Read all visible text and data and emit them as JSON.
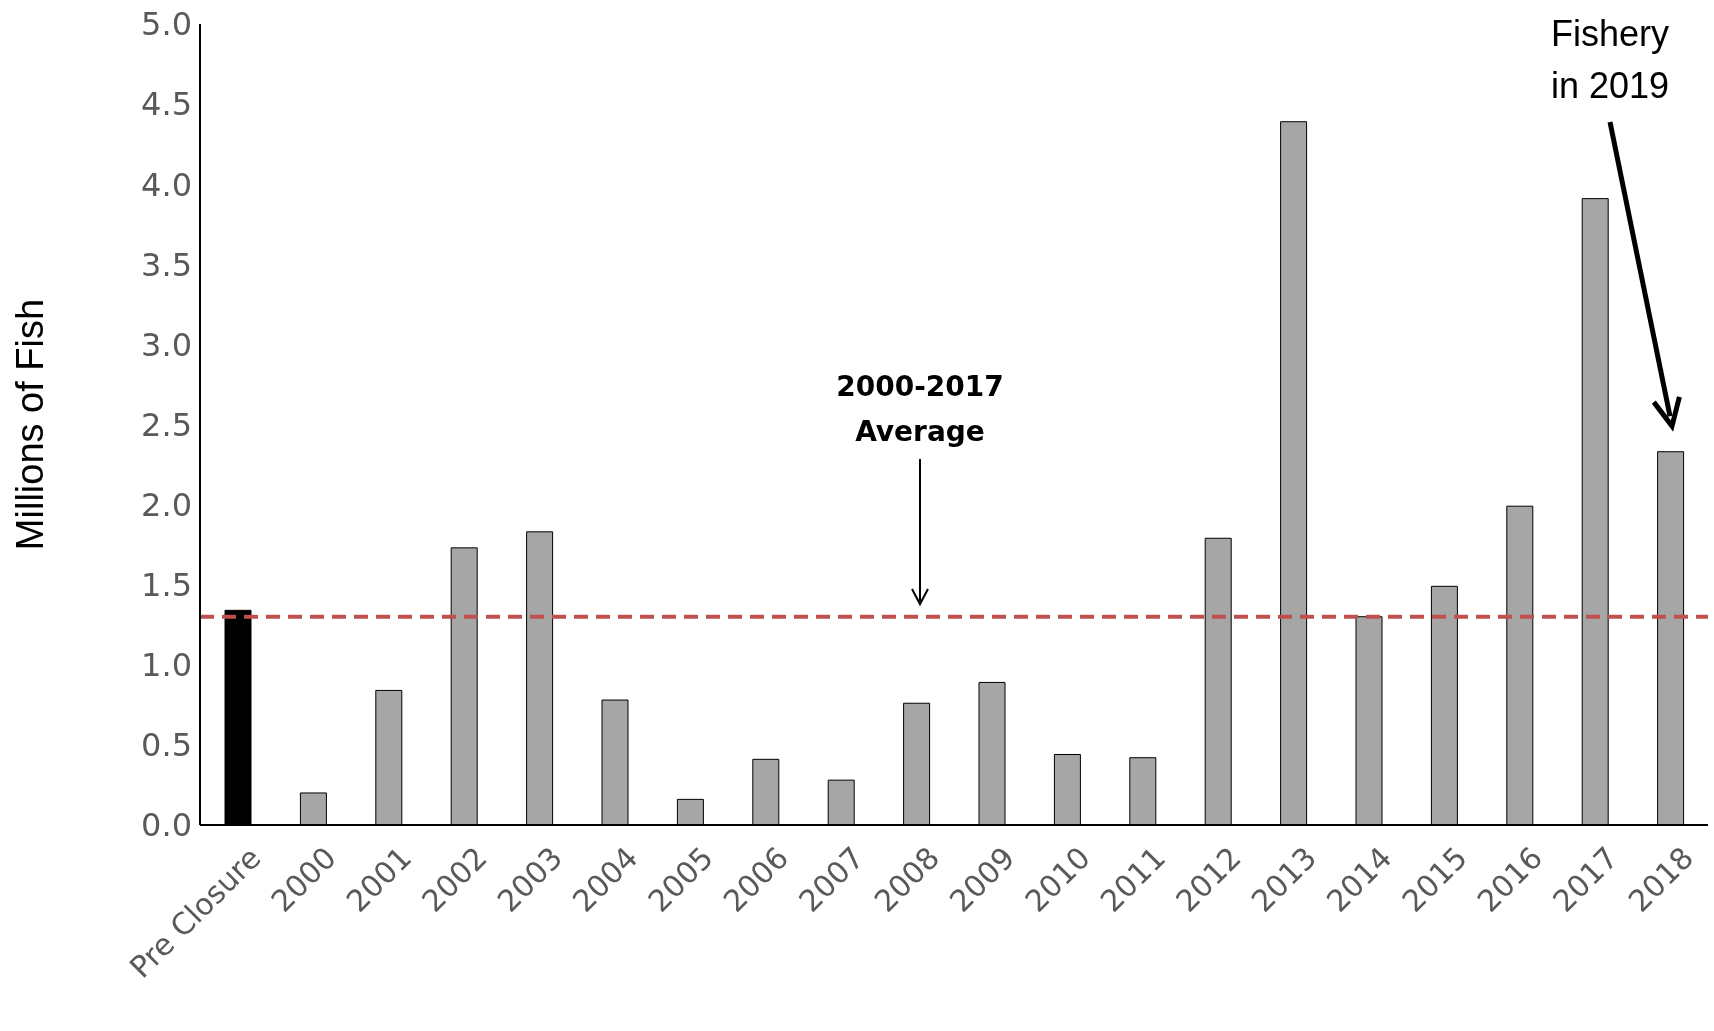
{
  "chart_data": {
    "type": "bar",
    "ylabel": "Millions of Fish",
    "categories": [
      "Pre Closure",
      "2000",
      "2001",
      "2002",
      "2003",
      "2004",
      "2005",
      "2006",
      "2007",
      "2008",
      "2009",
      "2010",
      "2011",
      "2012",
      "2013",
      "2014",
      "2015",
      "2016",
      "2017",
      "2018"
    ],
    "values": [
      1.34,
      0.2,
      0.84,
      1.73,
      1.83,
      0.78,
      0.16,
      0.41,
      0.28,
      0.76,
      0.89,
      0.44,
      0.42,
      1.79,
      4.39,
      1.3,
      1.49,
      1.99,
      3.91,
      2.33
    ],
    "colors": [
      "#000000",
      "#a6a6a6",
      "#a6a6a6",
      "#a6a6a6",
      "#a6a6a6",
      "#a6a6a6",
      "#a6a6a6",
      "#a6a6a6",
      "#a6a6a6",
      "#a6a6a6",
      "#a6a6a6",
      "#a6a6a6",
      "#a6a6a6",
      "#a6a6a6",
      "#a6a6a6",
      "#a6a6a6",
      "#a6a6a6",
      "#a6a6a6",
      "#a6a6a6",
      "#a6a6a6"
    ],
    "ylim": [
      0,
      5
    ],
    "yticks": [
      {
        "value": 0,
        "label": "0.0"
      },
      {
        "value": 0.5,
        "label": "0.5"
      },
      {
        "value": 1,
        "label": "1.0"
      },
      {
        "value": 1.5,
        "label": "1.5"
      },
      {
        "value": 2,
        "label": "2.0"
      },
      {
        "value": 2.5,
        "label": "2.5"
      },
      {
        "value": 3,
        "label": "3.0"
      },
      {
        "value": 3.5,
        "label": "3.5"
      },
      {
        "value": 4,
        "label": "4.0"
      },
      {
        "value": 4.5,
        "label": "4.5"
      },
      {
        "value": 5,
        "label": "5.0"
      }
    ],
    "ref_lines": [
      {
        "axis": "y",
        "value": 1.3,
        "color": "#c0504d",
        "line_style": "dashed"
      }
    ],
    "annotations": [
      "2000-2017 Average",
      "Fishery in 2019"
    ],
    "grid": false,
    "legend": false
  }
}
